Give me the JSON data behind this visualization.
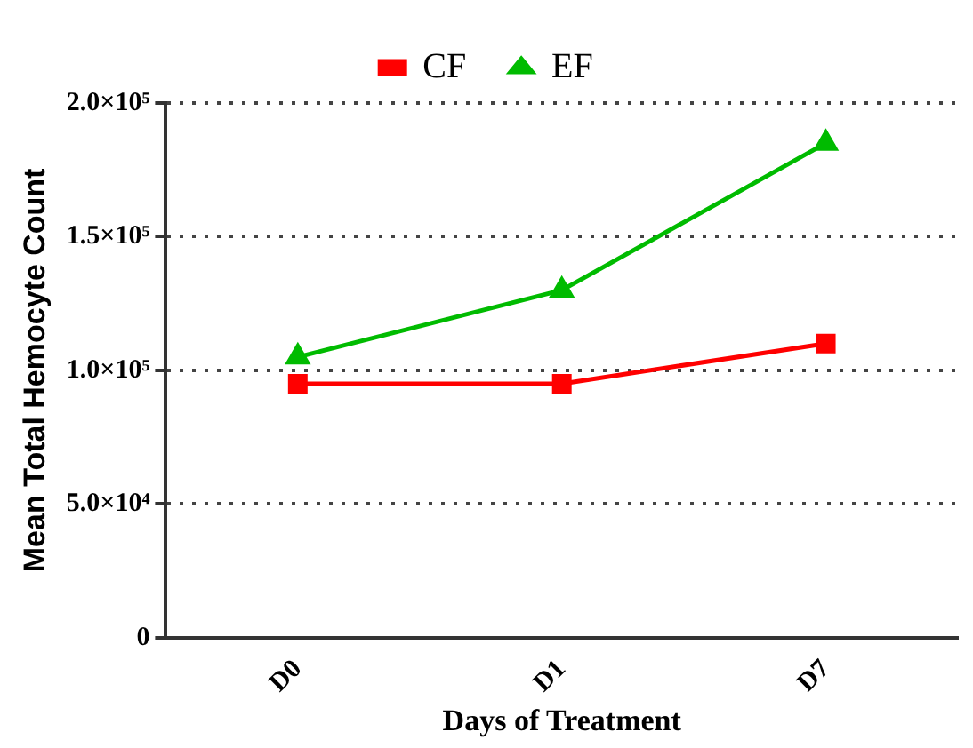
{
  "chart_data": {
    "type": "line",
    "xlabel": "Days of Treatment",
    "ylabel": "Mean Total Hemocyte Count",
    "categories": [
      "D0",
      "D1",
      "D7"
    ],
    "series": [
      {
        "name": "CF",
        "color": "#ff0000",
        "marker": "square",
        "values": [
          95000,
          95000,
          110000
        ]
      },
      {
        "name": "EF",
        "color": "#00bb00",
        "marker": "triangle",
        "values": [
          105000,
          130000,
          185000
        ]
      }
    ],
    "ylim": [
      0,
      200000
    ],
    "yticks": [
      0,
      {
        "value": 50000,
        "label": "5.0×10⁴"
      },
      {
        "value": 100000,
        "label": "1.0×10⁵"
      },
      {
        "value": 150000,
        "label": "1.5×10⁵"
      },
      {
        "value": 200000,
        "label": "2.0×10⁵"
      }
    ],
    "grid": "y",
    "legend": "top",
    "line_style": "solid"
  }
}
